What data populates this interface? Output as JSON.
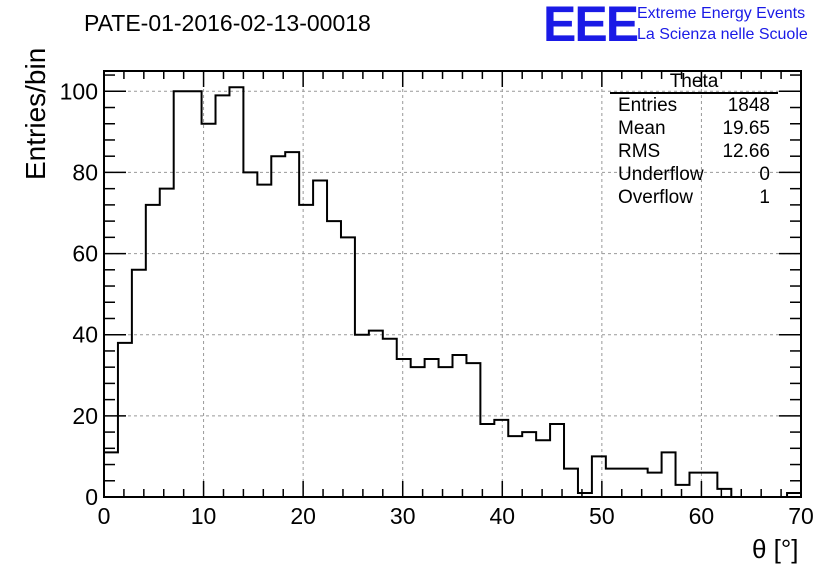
{
  "header": {
    "title": "PATE-01-2016-02-13-00018",
    "logo_mark": "EEE",
    "logo_line1": "Extreme Energy Events",
    "logo_line2": "La Scienza nelle Scuole",
    "brand_color": "#1a1ae6"
  },
  "stats": {
    "title": "Theta",
    "rows": [
      {
        "label": "Entries",
        "value": "1848"
      },
      {
        "label": "Mean",
        "value": "19.65"
      },
      {
        "label": "RMS",
        "value": "12.66"
      },
      {
        "label": "Underflow",
        "value": "0"
      },
      {
        "label": "Overflow",
        "value": "1"
      }
    ]
  },
  "chart_data": {
    "type": "histogram",
    "xlabel": "θ [°]",
    "ylabel": "Entries/bin",
    "xlim": [
      0,
      70
    ],
    "ylim": [
      0,
      105
    ],
    "grid": true,
    "legend": "top-right",
    "bin_width": 1.4,
    "x_ticks": [
      0,
      10,
      20,
      30,
      40,
      50,
      60,
      70
    ],
    "y_ticks": [
      0,
      20,
      40,
      60,
      80,
      100
    ],
    "values": [
      11,
      38,
      56,
      72,
      76,
      100,
      100,
      92,
      99,
      101,
      80,
      77,
      84,
      85,
      72,
      78,
      68,
      64,
      40,
      41,
      39,
      34,
      32,
      34,
      32,
      35,
      33,
      18,
      19,
      15,
      16,
      14,
      18,
      7,
      1,
      10,
      7,
      7,
      7,
      6,
      11,
      3,
      6,
      6,
      2,
      0,
      0,
      0,
      0,
      1
    ]
  }
}
